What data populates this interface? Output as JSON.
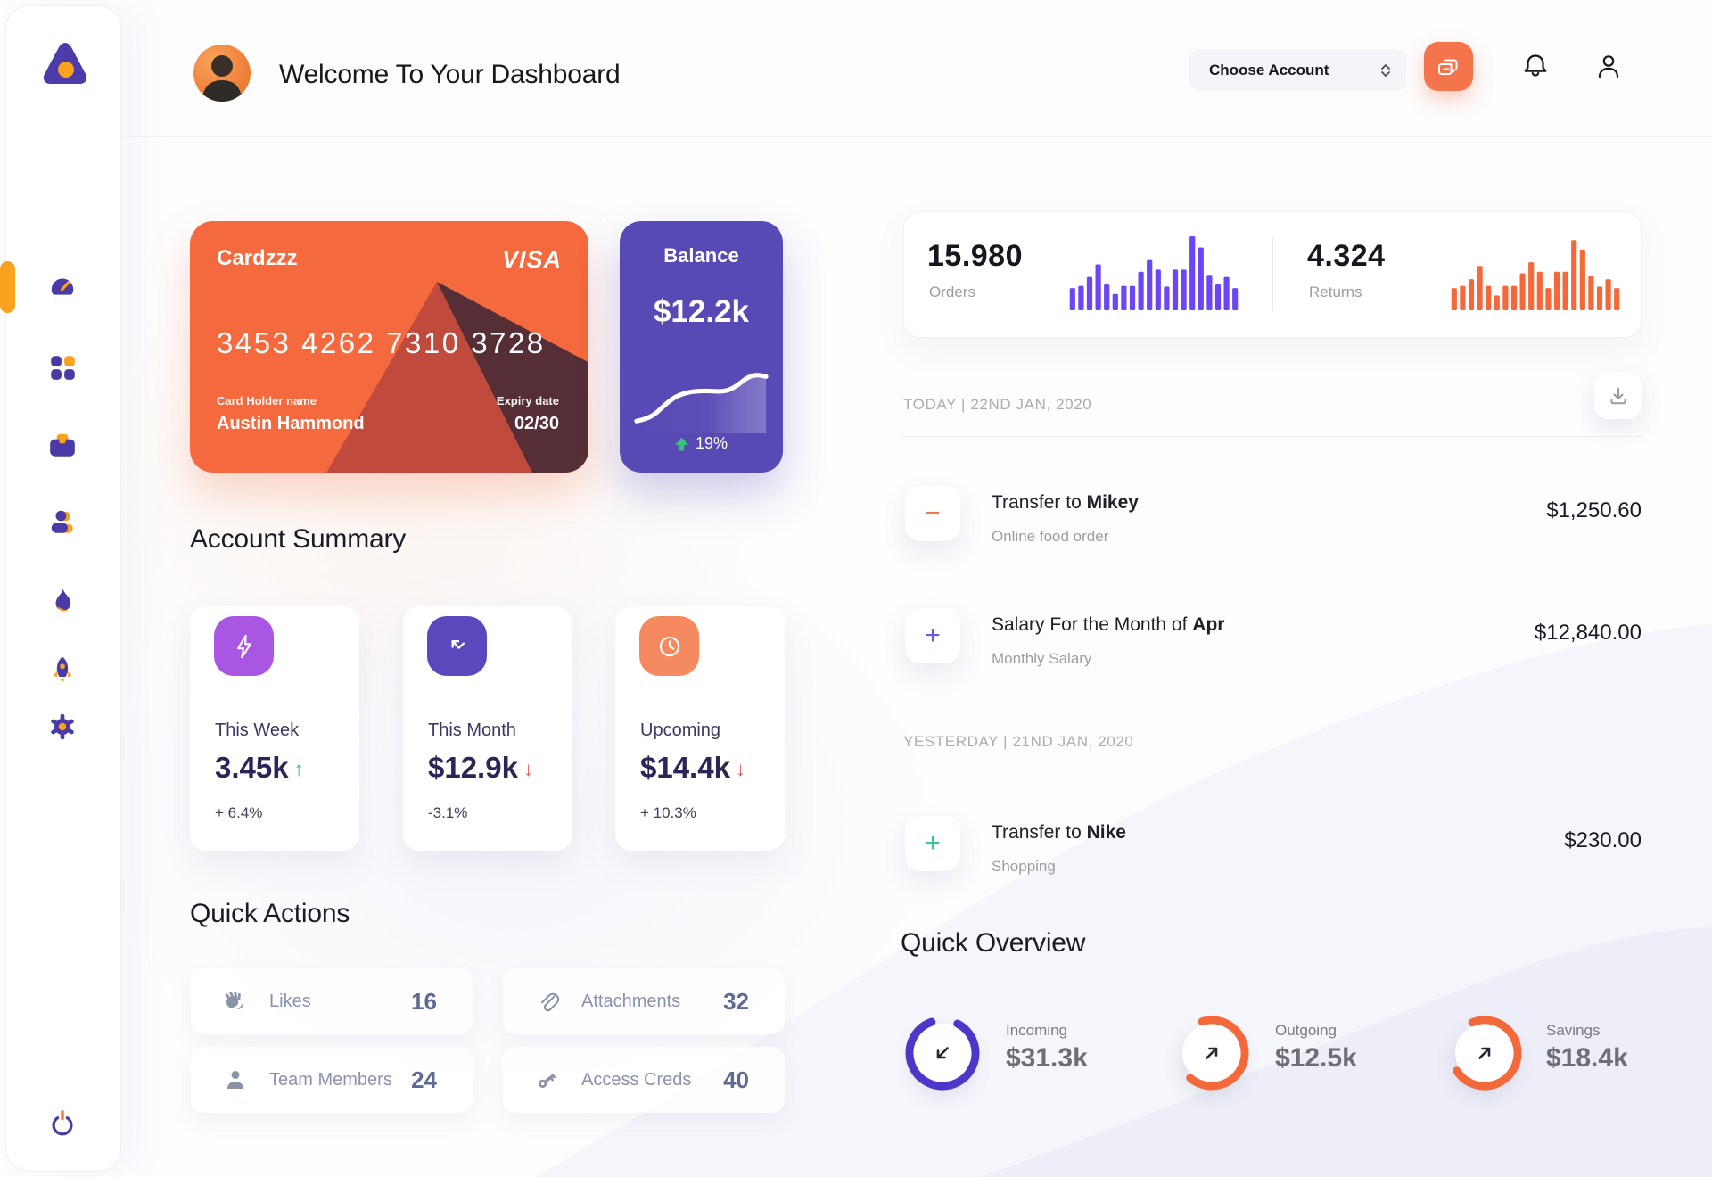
{
  "sidebar": {
    "nav": [
      {
        "icon": "gauge-dashboard",
        "active": true
      },
      {
        "icon": "apps-grid",
        "active": false
      },
      {
        "icon": "briefcase",
        "active": false
      },
      {
        "icon": "team",
        "active": false
      },
      {
        "icon": "flame",
        "active": false
      },
      {
        "icon": "rocket",
        "active": false
      },
      {
        "icon": "settings-gear",
        "active": false
      }
    ],
    "logout_icon": "power"
  },
  "header": {
    "title": "Welcome To Your Dashboard",
    "account_dropdown": {
      "label": "Choose Account"
    }
  },
  "wallet_card": {
    "name": "Cardzzz",
    "brand": "VISA",
    "number": "3453 4262 7310 3728",
    "holder_label": "Card Holder name",
    "holder_name": "Austin Hammond",
    "expiry_label": "Expiry date",
    "expiry": "02/30",
    "bg": "#f4693d"
  },
  "balance_card": {
    "title": "Balance",
    "value": "$12.2k",
    "change": "19%",
    "change_color": "#3dbf7f",
    "bg": "#574ab4",
    "spark": [
      10,
      13,
      20,
      33,
      44,
      50,
      53,
      54,
      54,
      53,
      55,
      63,
      74,
      78,
      75
    ]
  },
  "stats": {
    "orders": {
      "value": "15.980",
      "label": "Orders",
      "color": "#6b46f6",
      "bars": [
        30,
        33,
        45,
        62,
        35,
        22,
        33,
        33,
        52,
        68,
        55,
        32,
        55,
        55,
        100,
        85,
        48,
        35,
        45,
        30
      ]
    },
    "returns": {
      "value": "4.324",
      "label": "Returns",
      "color": "#f4693b",
      "bars": [
        30,
        33,
        42,
        60,
        33,
        20,
        33,
        33,
        50,
        65,
        52,
        30,
        52,
        52,
        95,
        82,
        47,
        32,
        42,
        30
      ]
    }
  },
  "account_summary": {
    "heading": "Account Summary",
    "cards": [
      {
        "icon": "lightning",
        "icon_bg": "#a957e3",
        "label": "This Week",
        "value": "3.45k",
        "arrow": "↑",
        "arrow_color": "#2ebd85",
        "delta": "+ 6.4%"
      },
      {
        "icon": "arrow-up-left-trend",
        "icon_bg": "#5a49bc",
        "label": "This Month",
        "value": "$12.9k",
        "arrow": "↓",
        "arrow_color": "#e25c5c",
        "delta": "-3.1%"
      },
      {
        "icon": "clock",
        "icon_bg": "#f58a61",
        "label": "Upcoming",
        "value": "$14.4k",
        "arrow": "↓",
        "arrow_color": "#e25c5c",
        "delta": "+ 10.3%"
      }
    ]
  },
  "quick_actions": {
    "heading": "Quick Actions",
    "items": [
      {
        "icon": "clapping-hands",
        "label": "Likes",
        "count": "16"
      },
      {
        "icon": "paperclip",
        "label": "Attachments",
        "count": "32"
      },
      {
        "icon": "person",
        "label": "Team Members",
        "count": "24"
      },
      {
        "icon": "key",
        "label": "Access Creds",
        "count": "40"
      }
    ]
  },
  "transactions": {
    "groups": [
      {
        "date": "TODAY | 22ND JAN, 2020",
        "rows": [
          {
            "sign": "−",
            "sign_color": "#f0794f",
            "title_prefix": "Transfer to ",
            "title_bold": "Mikey",
            "subtitle": "Online food order",
            "amount": "$1,250.60"
          },
          {
            "sign": "+",
            "sign_color": "#6a5bd8",
            "title_prefix": "Salary For the Month of ",
            "title_bold": "Apr",
            "subtitle": "Monthly Salary",
            "amount": "$12,840.00"
          }
        ]
      },
      {
        "date": "YESTERDAY | 21ND JAN, 2020",
        "rows": [
          {
            "sign": "+",
            "sign_color": "#35c49b",
            "title_prefix": "Transfer to ",
            "title_bold": "Nike",
            "subtitle": "Shopping",
            "amount": "$230.00"
          }
        ]
      }
    ]
  },
  "quick_overview": {
    "heading": "Quick Overview",
    "items": [
      {
        "label": "Incoming",
        "value": "$31.3k",
        "ring_color": "#4c38c8",
        "pct": 0.87,
        "rotate": -63,
        "arrow": "down-left"
      },
      {
        "label": "Outgoing",
        "value": "$12.5k",
        "ring_color": "#f4693b",
        "pct": 0.66,
        "rotate": -107,
        "arrow": "up-right"
      },
      {
        "label": "Savings",
        "value": "$18.4k",
        "ring_color": "#f4693b",
        "pct": 0.72,
        "rotate": -112,
        "arrow": "up-right"
      }
    ]
  }
}
